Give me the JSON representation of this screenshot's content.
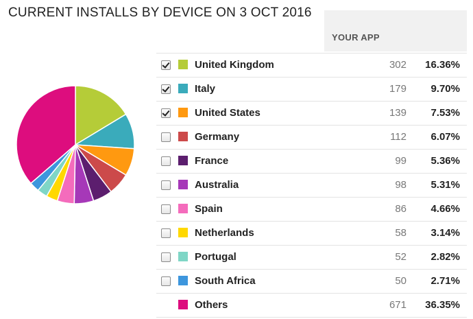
{
  "title": "CURRENT INSTALLS BY DEVICE ON 3 OCT 2016",
  "column_header": "YOUR APP",
  "chart_data": {
    "type": "pie",
    "title": "CURRENT INSTALLS BY DEVICE ON 3 OCT 2016",
    "slices": [
      {
        "label": "United Kingdom",
        "count": 302,
        "percent": "16.36%",
        "value": 16.36,
        "color": "#b5cc38",
        "checked": true
      },
      {
        "label": "Italy",
        "count": 179,
        "percent": "9.70%",
        "value": 9.7,
        "color": "#3aabbb",
        "checked": true
      },
      {
        "label": "United States",
        "count": 139,
        "percent": "7.53%",
        "value": 7.53,
        "color": "#ff9910",
        "checked": true
      },
      {
        "label": "Germany",
        "count": 112,
        "percent": "6.07%",
        "value": 6.07,
        "color": "#cc4a4a",
        "checked": false
      },
      {
        "label": "France",
        "count": 99,
        "percent": "5.36%",
        "value": 5.36,
        "color": "#5c1e6e",
        "checked": false
      },
      {
        "label": "Australia",
        "count": 98,
        "percent": "5.31%",
        "value": 5.31,
        "color": "#a638b8",
        "checked": false
      },
      {
        "label": "Spain",
        "count": 86,
        "percent": "4.66%",
        "value": 4.66,
        "color": "#f46cbc",
        "checked": false
      },
      {
        "label": "Netherlands",
        "count": 58,
        "percent": "3.14%",
        "value": 3.14,
        "color": "#ffd800",
        "checked": false
      },
      {
        "label": "Portugal",
        "count": 52,
        "percent": "2.82%",
        "value": 2.82,
        "color": "#7fd6c6",
        "checked": false
      },
      {
        "label": "South Africa",
        "count": 50,
        "percent": "2.71%",
        "value": 2.71,
        "color": "#3d96dd",
        "checked": false
      },
      {
        "label": "Others",
        "count": 671,
        "percent": "36.35%",
        "value": 36.35,
        "color": "#dd0d7e",
        "checked": null
      }
    ]
  }
}
